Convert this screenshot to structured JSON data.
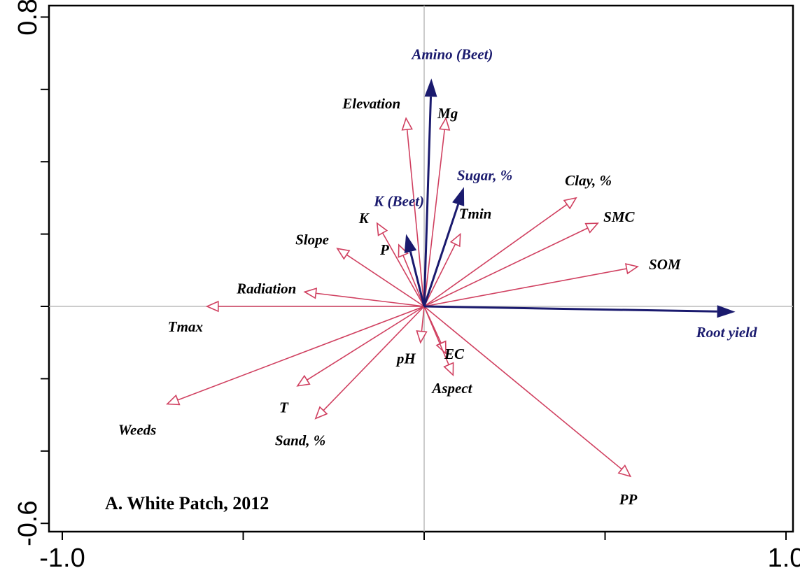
{
  "chart_data": {
    "type": "biplot",
    "xlim": [
      -1.0,
      1.0
    ],
    "ylim": [
      -0.6,
      0.8
    ],
    "x_ticks": [
      -1.0,
      -0.5,
      0.0,
      0.5,
      1.0
    ],
    "y_ticks": [
      -0.6,
      -0.4,
      -0.2,
      0.0,
      0.2,
      0.4,
      0.6,
      0.8
    ],
    "x_tick_labels": [
      {
        "value": -1.0,
        "label": "-1.0"
      },
      {
        "value": 1.0,
        "label": "1.0"
      }
    ],
    "y_tick_labels": [
      {
        "value": 0.8,
        "label": "0.8"
      },
      {
        "value": -0.6,
        "label": "-0.6"
      }
    ],
    "panel_label": "A.  White Patch, 2012",
    "grid": false,
    "zero_lines": true,
    "colors": {
      "response": "#1a1a6e",
      "explanatory": "#d04060"
    },
    "response_vectors": [
      {
        "name": "Amino (Beet)",
        "x": 0.02,
        "y": 0.63
      },
      {
        "name": "Sugar, %",
        "x": 0.11,
        "y": 0.33
      },
      {
        "name": "K (Beet)",
        "x": -0.05,
        "y": 0.2
      },
      {
        "name": "Root yield",
        "x": 0.86,
        "y": -0.015
      }
    ],
    "explanatory_vectors": [
      {
        "name": "Elevation",
        "x": -0.05,
        "y": 0.52
      },
      {
        "name": "Mg",
        "x": 0.06,
        "y": 0.52
      },
      {
        "name": "Clay, %",
        "x": 0.42,
        "y": 0.3
      },
      {
        "name": "SMC",
        "x": 0.48,
        "y": 0.23
      },
      {
        "name": "SOM",
        "x": 0.59,
        "y": 0.11
      },
      {
        "name": "Tmin",
        "x": 0.1,
        "y": 0.2
      },
      {
        "name": "K",
        "x": -0.13,
        "y": 0.23
      },
      {
        "name": "P",
        "x": -0.07,
        "y": 0.17
      },
      {
        "name": "Slope",
        "x": -0.24,
        "y": 0.16
      },
      {
        "name": "Radiation",
        "x": -0.33,
        "y": 0.04
      },
      {
        "name": "Tmax",
        "x": -0.6,
        "y": 0.0
      },
      {
        "name": "Weeds",
        "x": -0.71,
        "y": -0.27
      },
      {
        "name": "T",
        "x": -0.35,
        "y": -0.22
      },
      {
        "name": "Sand, %",
        "x": -0.3,
        "y": -0.31
      },
      {
        "name": "pH",
        "x": -0.01,
        "y": -0.1
      },
      {
        "name": "EC",
        "x": 0.06,
        "y": -0.13
      },
      {
        "name": "Aspect",
        "x": 0.08,
        "y": -0.19
      },
      {
        "name": "PP",
        "x": 0.57,
        "y": -0.47
      }
    ]
  }
}
